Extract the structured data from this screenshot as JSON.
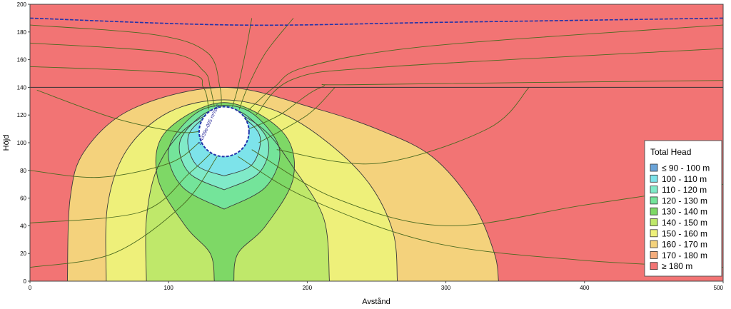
{
  "chart_data": {
    "type": "heatmap",
    "title": "",
    "xlabel": "Avstånd",
    "ylabel": "Höjd",
    "xlim": [
      0,
      500
    ],
    "ylim": [
      0,
      200
    ],
    "x_ticks": [
      0,
      100,
      200,
      300,
      400,
      500
    ],
    "y_ticks": [
      0,
      20,
      40,
      60,
      80,
      100,
      120,
      140,
      160,
      180,
      200
    ],
    "legend": {
      "title": "Total Head",
      "placement": "right",
      "entries": [
        {
          "label": "≤ 90 - 100 m",
          "color": "#6aa3d8"
        },
        {
          "label": "100 - 110 m",
          "color": "#7de3ea"
        },
        {
          "label": "110 - 120 m",
          "color": "#80eac8"
        },
        {
          "label": "120 - 130 m",
          "color": "#74e49a"
        },
        {
          "label": "130 - 140 m",
          "color": "#7ed866"
        },
        {
          "label": "140 - 150 m",
          "color": "#bfe86a"
        },
        {
          "label": "150 - 160 m",
          "color": "#eef07a"
        },
        {
          "label": "160 - 170 m",
          "color": "#f4d27c"
        },
        {
          "label": "170 - 180 m",
          "color": "#f4ac7c"
        },
        {
          "label": "≥ 180 m",
          "color": "#f27474"
        }
      ]
    },
    "tunnel": {
      "center": [
        140,
        108
      ],
      "radius": 18
    },
    "layer_boundary_y": 140,
    "water_table": [
      [
        0,
        190
      ],
      [
        150,
        185
      ],
      [
        300,
        187
      ],
      [
        500,
        190
      ]
    ],
    "annotation": "3.4339e-005 m³/sec",
    "contours": [
      {
        "value": 170,
        "points": [
          [
            27,
            0
          ],
          [
            29,
            60
          ],
          [
            40,
            95
          ],
          [
            75,
            125
          ],
          [
            140,
            140
          ],
          [
            205,
            125
          ],
          [
            250,
            110
          ],
          [
            290,
            90
          ],
          [
            320,
            55
          ],
          [
            335,
            20
          ],
          [
            338,
            0
          ]
        ]
      },
      {
        "value": 160,
        "points": [
          [
            55,
            0
          ],
          [
            56,
            55
          ],
          [
            70,
            95
          ],
          [
            100,
            122
          ],
          [
            140,
            131
          ],
          [
            180,
            122
          ],
          [
            215,
            100
          ],
          [
            245,
            70
          ],
          [
            262,
            35
          ],
          [
            265,
            0
          ]
        ]
      },
      {
        "value": 150,
        "points": [
          [
            84,
            0
          ],
          [
            84,
            45
          ],
          [
            92,
            82
          ],
          [
            112,
            110
          ],
          [
            140,
            123
          ],
          [
            168,
            110
          ],
          [
            190,
            82
          ],
          [
            212,
            45
          ],
          [
            216,
            0
          ]
        ]
      },
      {
        "value": 140,
        "points": [
          [
            133,
            0
          ],
          [
            130,
            20
          ],
          [
            112,
            40
          ],
          [
            92,
            75
          ],
          [
            98,
            108
          ],
          [
            140,
            129
          ],
          [
            182,
            108
          ],
          [
            190,
            75
          ],
          [
            170,
            40
          ],
          [
            150,
            20
          ],
          [
            147,
            0
          ]
        ]
      },
      {
        "value": 130,
        "points": [
          [
            140,
            52
          ],
          [
            110,
            68
          ],
          [
            100,
            95
          ],
          [
            118,
            120
          ],
          [
            140,
            127
          ],
          [
            162,
            120
          ],
          [
            180,
            95
          ],
          [
            170,
            68
          ],
          [
            140,
            52
          ]
        ]
      },
      {
        "value": 120,
        "points": [
          [
            140,
            66
          ],
          [
            115,
            78
          ],
          [
            108,
            100
          ],
          [
            123,
            119
          ],
          [
            140,
            125
          ],
          [
            157,
            119
          ],
          [
            172,
            100
          ],
          [
            165,
            78
          ],
          [
            140,
            66
          ]
        ]
      },
      {
        "value": 110,
        "points": [
          [
            140,
            76
          ],
          [
            120,
            84
          ],
          [
            114,
            104
          ],
          [
            126,
            118
          ],
          [
            140,
            123
          ],
          [
            154,
            118
          ],
          [
            166,
            104
          ],
          [
            160,
            84
          ],
          [
            140,
            76
          ]
        ]
      }
    ],
    "flow_lines": [
      {
        "points": [
          [
            0,
            185
          ],
          [
            90,
            178
          ],
          [
            128,
            165
          ],
          [
            137,
            140
          ],
          [
            138,
            126
          ]
        ]
      },
      {
        "points": [
          [
            0,
            172
          ],
          [
            100,
            165
          ],
          [
            125,
            152
          ],
          [
            130,
            140
          ],
          [
            133,
            126
          ]
        ]
      },
      {
        "points": [
          [
            0,
            155
          ],
          [
            110,
            150
          ],
          [
            125,
            140
          ],
          [
            129,
            124
          ]
        ]
      },
      {
        "points": [
          [
            160,
            190
          ],
          [
            156,
            168
          ],
          [
            150,
            140
          ],
          [
            146,
            126
          ]
        ]
      },
      {
        "points": [
          [
            190,
            190
          ],
          [
            170,
            165
          ],
          [
            157,
            140
          ],
          [
            151,
            124
          ]
        ]
      },
      {
        "points": [
          [
            500,
            185
          ],
          [
            290,
            170
          ],
          [
            200,
            155
          ],
          [
            176,
            140
          ],
          [
            157,
            123
          ]
        ]
      },
      {
        "points": [
          [
            500,
            168
          ],
          [
            260,
            155
          ],
          [
            190,
            146
          ],
          [
            163,
            120
          ]
        ]
      },
      {
        "points": [
          [
            500,
            145
          ],
          [
            240,
            142
          ],
          [
            210,
            140
          ],
          [
            180,
            120
          ],
          [
            158,
            110
          ]
        ]
      },
      {
        "points": [
          [
            5,
            138
          ],
          [
            60,
            118
          ],
          [
            105,
            108
          ],
          [
            122,
            108
          ]
        ]
      },
      {
        "points": [
          [
            0,
            80
          ],
          [
            50,
            75
          ],
          [
            100,
            85
          ],
          [
            122,
            100
          ]
        ]
      },
      {
        "points": [
          [
            0,
            42
          ],
          [
            80,
            50
          ],
          [
            115,
            78
          ],
          [
            130,
            92
          ]
        ]
      },
      {
        "points": [
          [
            0,
            10
          ],
          [
            60,
            20
          ],
          [
            110,
            55
          ],
          [
            135,
            90
          ]
        ]
      },
      {
        "points": [
          [
            500,
            10
          ],
          [
            400,
            15
          ],
          [
            290,
            28
          ],
          [
            200,
            60
          ],
          [
            150,
            90
          ]
        ]
      },
      {
        "points": [
          [
            500,
            70
          ],
          [
            400,
            55
          ],
          [
            300,
            40
          ],
          [
            220,
            60
          ],
          [
            160,
            95
          ]
        ]
      },
      {
        "points": [
          [
            220,
            140
          ],
          [
            200,
            120
          ],
          [
            165,
            100
          ]
        ]
      },
      {
        "points": [
          [
            360,
            140
          ],
          [
            330,
            110
          ],
          [
            250,
            85
          ],
          [
            178,
            95
          ]
        ]
      }
    ]
  }
}
